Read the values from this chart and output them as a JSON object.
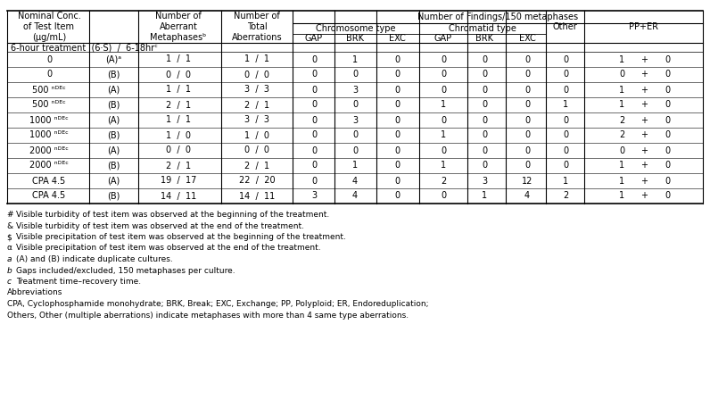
{
  "title_row1": "Number of Findings/150 metaphases",
  "header_chromosome": "Chromosome type",
  "header_chromatid": "Chromatid type",
  "header_sub": [
    "GAP",
    "BRK",
    "EXC",
    "GAP",
    "BRK",
    "EXC"
  ],
  "header_other": "Other",
  "header_pp": "PP+ER",
  "section_label": "6-hour treatment  (6·S)  /  6-18hrᶜ",
  "rows": [
    {
      "conc": "0",
      "ab": "(A)ᵃ",
      "meta": "1  /  1",
      "total": "1  /  1",
      "c_gap": "0",
      "c_brk": "1",
      "c_exc": "0",
      "t_gap": "0",
      "t_brk": "0",
      "t_exc": "0",
      "other": "0",
      "pp1": "1",
      "pp2": "0"
    },
    {
      "conc": "0",
      "ab": "(B)",
      "meta": "0  /  0",
      "total": "0  /  0",
      "c_gap": "0",
      "c_brk": "0",
      "c_exc": "0",
      "t_gap": "0",
      "t_brk": "0",
      "t_exc": "0",
      "other": "0",
      "pp1": "0",
      "pp2": "0"
    },
    {
      "conc": "500 ⁿᴰᴱᶜ",
      "ab": "(A)",
      "meta": "1  /  1",
      "total": "3  /  3",
      "c_gap": "0",
      "c_brk": "3",
      "c_exc": "0",
      "t_gap": "0",
      "t_brk": "0",
      "t_exc": "0",
      "other": "0",
      "pp1": "1",
      "pp2": "0"
    },
    {
      "conc": "500 ⁿᴰᴱᶜ",
      "ab": "(B)",
      "meta": "2  /  1",
      "total": "2  /  1",
      "c_gap": "0",
      "c_brk": "0",
      "c_exc": "0",
      "t_gap": "1",
      "t_brk": "0",
      "t_exc": "0",
      "other": "1",
      "pp1": "1",
      "pp2": "0"
    },
    {
      "conc": "1000 ⁿᴰᴱᶜ",
      "ab": "(A)",
      "meta": "1  /  1",
      "total": "3  /  3",
      "c_gap": "0",
      "c_brk": "3",
      "c_exc": "0",
      "t_gap": "0",
      "t_brk": "0",
      "t_exc": "0",
      "other": "0",
      "pp1": "2",
      "pp2": "0"
    },
    {
      "conc": "1000 ⁿᴰᴱᶜ",
      "ab": "(B)",
      "meta": "1  /  0",
      "total": "1  /  0",
      "c_gap": "0",
      "c_brk": "0",
      "c_exc": "0",
      "t_gap": "1",
      "t_brk": "0",
      "t_exc": "0",
      "other": "0",
      "pp1": "2",
      "pp2": "0"
    },
    {
      "conc": "2000 ⁿᴰᴱᶜ",
      "ab": "(A)",
      "meta": "0  /  0",
      "total": "0  /  0",
      "c_gap": "0",
      "c_brk": "0",
      "c_exc": "0",
      "t_gap": "0",
      "t_brk": "0",
      "t_exc": "0",
      "other": "0",
      "pp1": "0",
      "pp2": "0"
    },
    {
      "conc": "2000 ⁿᴰᴱᶜ",
      "ab": "(B)",
      "meta": "2  /  1",
      "total": "2  /  1",
      "c_gap": "0",
      "c_brk": "1",
      "c_exc": "0",
      "t_gap": "1",
      "t_brk": "0",
      "t_exc": "0",
      "other": "0",
      "pp1": "1",
      "pp2": "0"
    },
    {
      "conc": "CPA 4.5",
      "ab": "(A)",
      "meta": "19  /  17",
      "total": "22  /  20",
      "c_gap": "0",
      "c_brk": "4",
      "c_exc": "0",
      "t_gap": "2",
      "t_brk": "3",
      "t_exc": "12",
      "other": "1",
      "pp1": "1",
      "pp2": "0"
    },
    {
      "conc": "CPA 4.5",
      "ab": "(B)",
      "meta": "14  /  11",
      "total": "14  /  11",
      "c_gap": "3",
      "c_brk": "4",
      "c_exc": "0",
      "t_gap": "0",
      "t_brk": "1",
      "t_exc": "4",
      "other": "2",
      "pp1": "1",
      "pp2": "0"
    }
  ],
  "footnotes": [
    [
      "# ",
      "Visible turbidity of test item was observed at the beginning of the treatment."
    ],
    [
      "& ",
      "Visible turbidity of test item was observed at the end of the treatment."
    ],
    [
      "$ ",
      "Visible precipitation of test item was observed at the beginning of the treatment."
    ],
    [
      "α ",
      "Visible precipitation of test item was observed at the end of the treatment."
    ],
    [
      "a ",
      "(A) and (B) indicate duplicate cultures."
    ],
    [
      "b ",
      "Gaps included/excluded, 150 metaphases per culture."
    ],
    [
      "c ",
      "Treatment time–recovery time."
    ],
    [
      "",
      "Abbreviations"
    ],
    [
      "",
      "CPA, Cyclophosphamide monohydrate; BRK, Break; EXC, Exchange; PP, Polyploid; ER, Endoreduplication;"
    ],
    [
      "",
      "Others, Other (multiple aberrations) indicate metaphases with more than 4 same type aberrations."
    ]
  ],
  "bg_color": "white",
  "font_size": 7.0,
  "footnote_size": 6.5
}
